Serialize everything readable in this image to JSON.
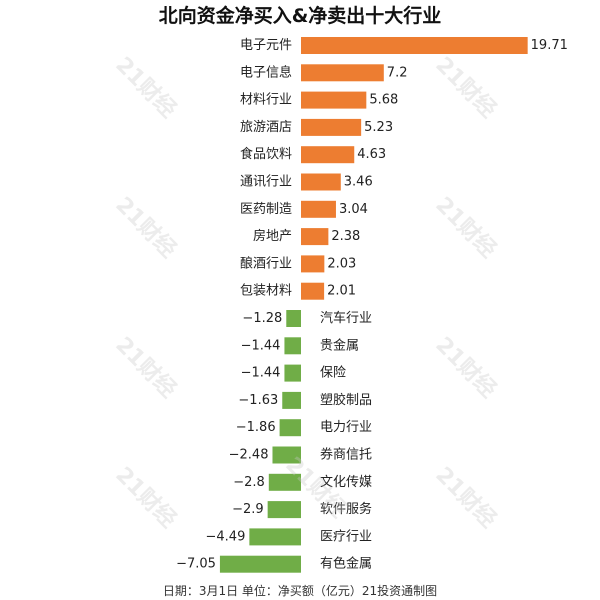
{
  "chart_data": {
    "type": "bar",
    "orientation": "horizontal",
    "title": "北向资金净买入&净卖出十大行业",
    "categories": [
      "电子元件",
      "电子信息",
      "材料行业",
      "旅游酒店",
      "食品饮料",
      "通讯行业",
      "医药制造",
      "房地产",
      "酿酒行业",
      "包装材料",
      "汽车行业",
      "贵金属",
      "保险",
      "塑胶制品",
      "电力行业",
      "券商信托",
      "文化传媒",
      "软件服务",
      "医疗行业",
      "有色金属"
    ],
    "values": [
      19.71,
      7.2,
      5.68,
      5.23,
      4.63,
      3.46,
      3.04,
      2.38,
      2.03,
      2.01,
      -1.28,
      -1.44,
      -1.44,
      -1.63,
      -1.86,
      -2.48,
      -2.8,
      -2.9,
      -4.49,
      -7.05
    ],
    "value_labels": [
      "19.71",
      "7.2",
      "5.68",
      "5.23",
      "4.63",
      "3.46",
      "3.04",
      "2.38",
      "2.03",
      "2.01",
      "−1.28",
      "−1.44",
      "−1.44",
      "−1.63",
      "−1.86",
      "−2.48",
      "−2.8",
      "−2.9",
      "−4.49",
      "−7.05"
    ],
    "colors": {
      "positive": "#ED7D31",
      "negative": "#70AD47"
    },
    "grid": false,
    "legend": "none"
  },
  "footer": "日期：3月1日 单位：净买额（亿元）21投资通制图",
  "watermark": "21财经"
}
